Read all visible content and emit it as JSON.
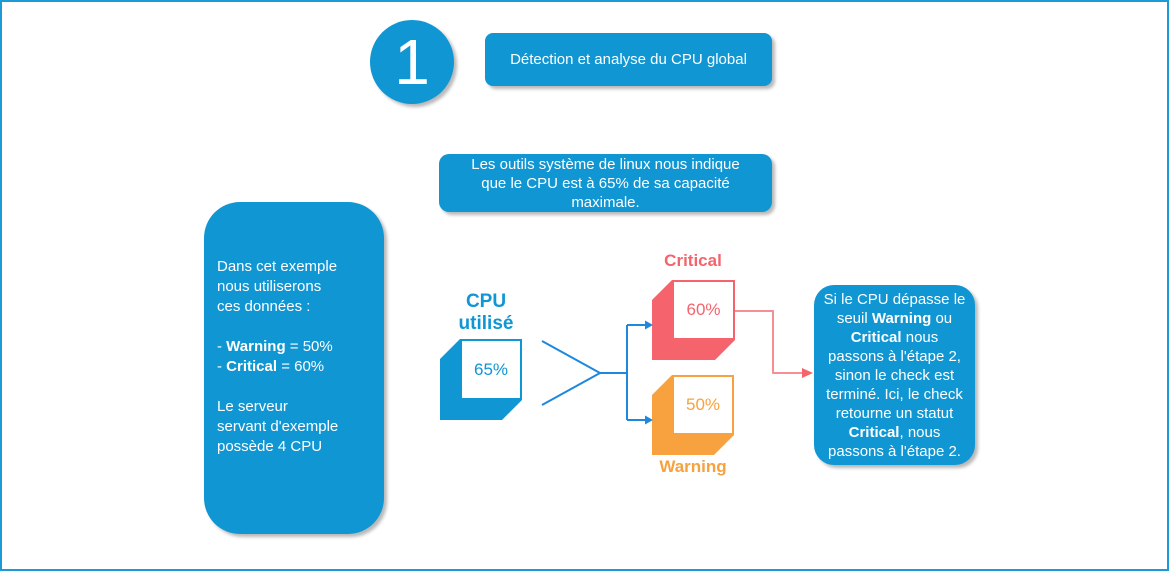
{
  "step": {
    "number": "1",
    "title": "Détection et analyse du CPU global"
  },
  "note_box": {
    "text": "Les outils système de linux nous indique\nque le CPU est à 65% de sa capacité\nmaximale."
  },
  "left_box": {
    "intro": "Dans cet exemple\nnous utiliserons\nces données :",
    "thresholds": [
      {
        "prefix": "- ",
        "label": "Warning",
        "value": " = 50%"
      },
      {
        "prefix": "- ",
        "label": "Critical",
        "value": " = 60%"
      }
    ],
    "outro": "Le serveur\nservant d'exemple\npossède 4 CPU"
  },
  "cpu_node": {
    "label": "CPU utilisé",
    "value": "65%"
  },
  "critical_node": {
    "label": "Critical",
    "value": "60%"
  },
  "warning_node": {
    "label": "Warning",
    "value": "50%"
  },
  "result_box": {
    "segments": [
      {
        "t": "Si le CPU dépasse le seuil ",
        "b": false
      },
      {
        "t": "Warning",
        "b": true
      },
      {
        "t": " ou ",
        "b": false
      },
      {
        "t": "Critical",
        "b": true
      },
      {
        "t": " nous passons à l'étape 2, sinon le check est terminé. Ici, le check retourne un statut ",
        "b": false
      },
      {
        "t": "Critical",
        "b": true
      },
      {
        "t": ", nous passons à l'étape 2.",
        "b": false
      }
    ]
  },
  "colors": {
    "blue": "#1096d3",
    "arrow_blue": "#1e87de",
    "salmon": "#f5646c",
    "salmon_light": "#f58f93",
    "orange": "#f8a13f",
    "frame": "#1a9bd7",
    "text_white": "#ffffff"
  }
}
